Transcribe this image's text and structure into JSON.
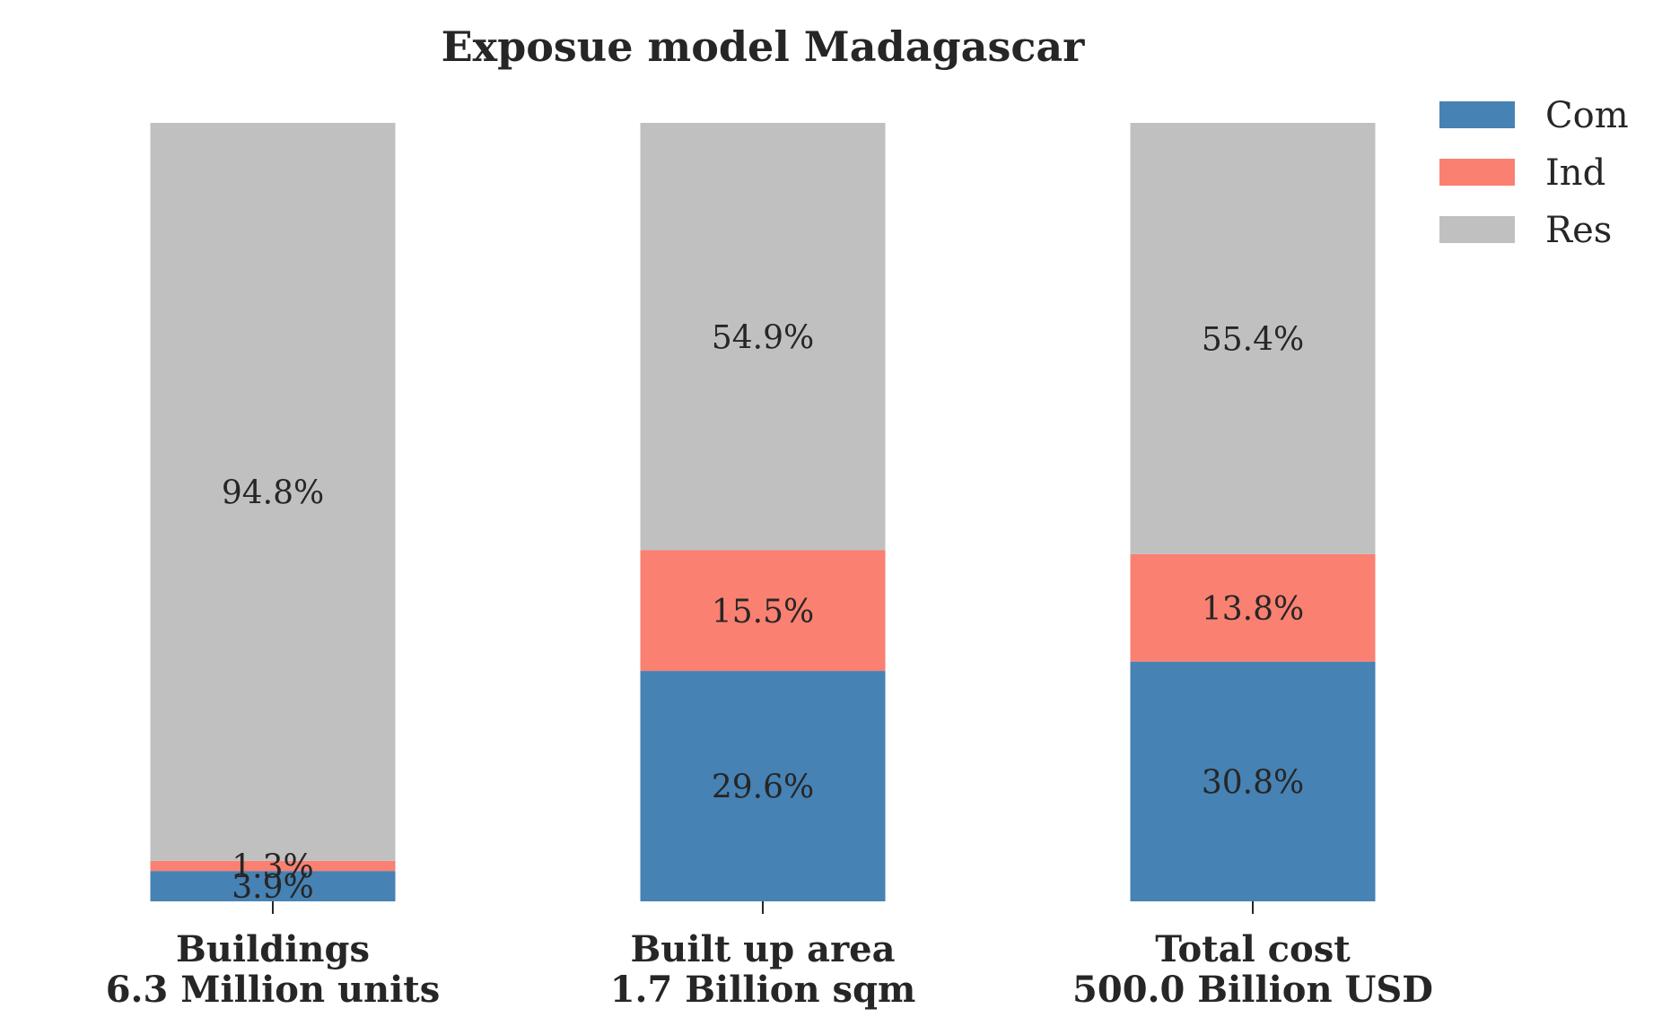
{
  "chart_data": {
    "type": "bar",
    "stacked": true,
    "title": "Exposue model Madagascar",
    "categories": [
      {
        "name": "Buildings",
        "subtitle": "6.3 Million units"
      },
      {
        "name": "Built up area",
        "subtitle": "1.7 Billion sqm"
      },
      {
        "name": "Total cost",
        "subtitle": "500.0 Billion USD"
      }
    ],
    "series": [
      {
        "name": "Com",
        "color": "#4682b4",
        "values": [
          3.9,
          29.6,
          30.8
        ],
        "labels": [
          "3.9%",
          "29.6%",
          "30.8%"
        ]
      },
      {
        "name": "Ind",
        "color": "#fa8072",
        "values": [
          1.3,
          15.5,
          13.8
        ],
        "labels": [
          "1.3%",
          "15.5%",
          "13.8%"
        ]
      },
      {
        "name": "Res",
        "color": "#c0c0c0",
        "values": [
          94.8,
          54.9,
          55.4
        ],
        "labels": [
          "94.8%",
          "54.9%",
          "55.4%"
        ]
      }
    ],
    "ylim": [
      0,
      100
    ],
    "grid": false,
    "legend_position": "top-right"
  }
}
